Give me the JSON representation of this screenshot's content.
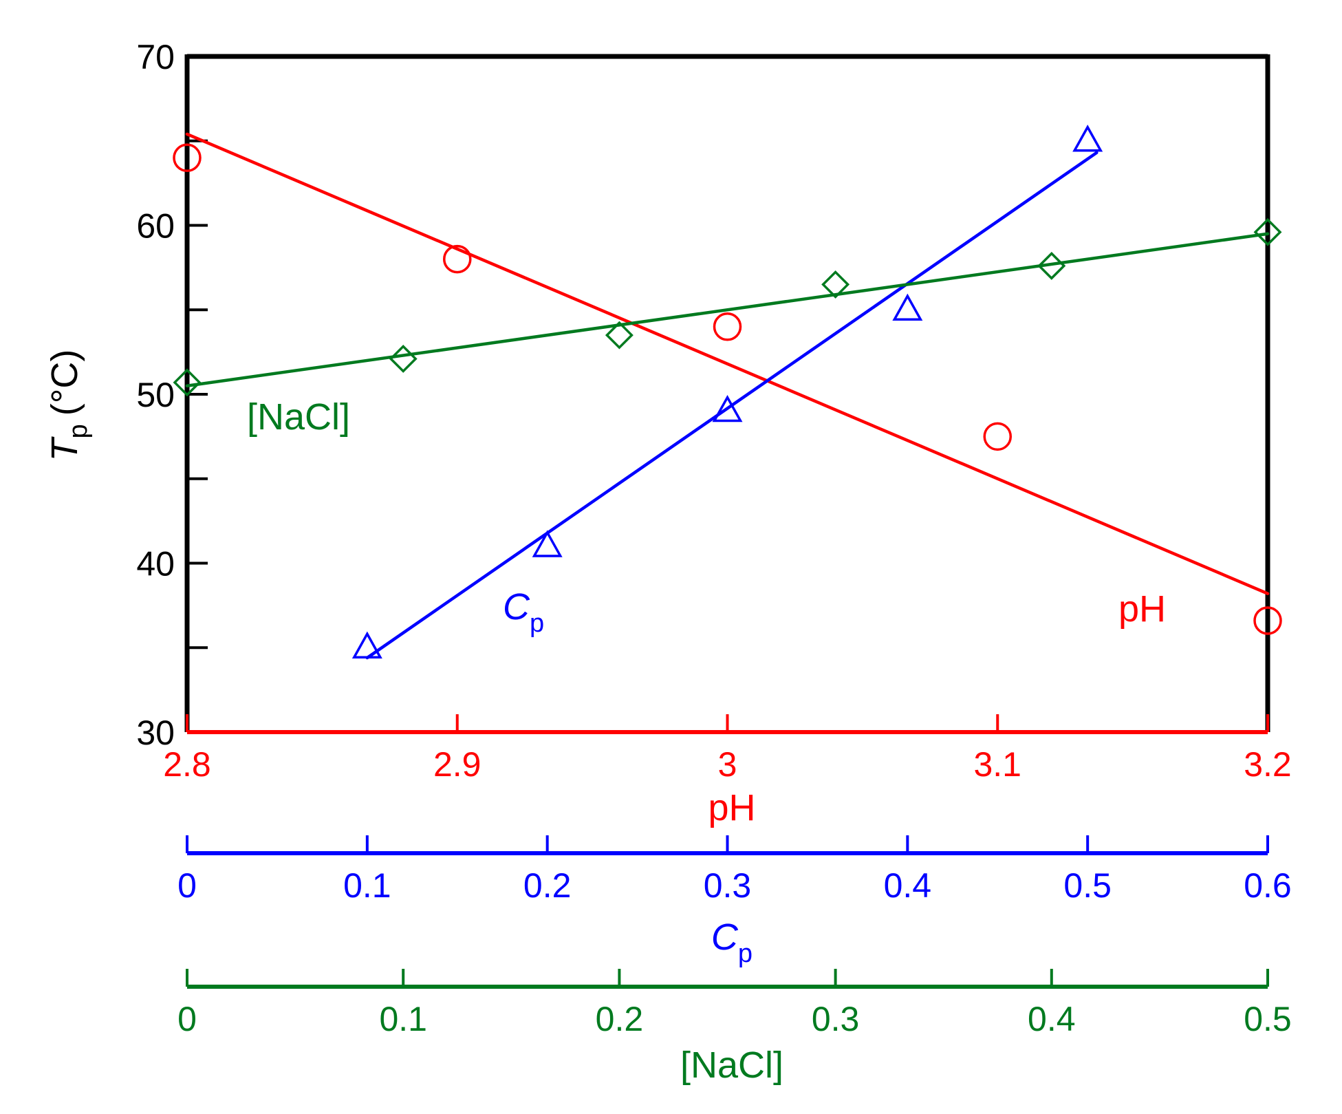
{
  "chart_data": {
    "type": "scatter",
    "title": "",
    "ylabel": {
      "symbol": "T",
      "subscript": "p",
      "unit": "(°C)"
    },
    "ylim": [
      30,
      70
    ],
    "yticks": [
      30,
      40,
      50,
      60,
      70
    ],
    "yminor": [
      35,
      45,
      55,
      65
    ],
    "grid": false,
    "colors": {
      "pH": "#ff0000",
      "Cp": "#0000ff",
      "NaCl": "#007a1f",
      "frame": "#000000"
    },
    "x_axes": [
      {
        "key": "pH",
        "label": "pH",
        "xlim": [
          2.8,
          3.2
        ],
        "ticks": [
          2.8,
          2.9,
          3.0,
          3.1,
          3.2
        ],
        "tick_labels": [
          "2.8",
          "2.9",
          "3",
          "3.1",
          "3.2"
        ]
      },
      {
        "key": "Cp",
        "label": {
          "symbol": "C",
          "subscript": "p"
        },
        "xlim": [
          0,
          0.6
        ],
        "ticks": [
          0,
          0.1,
          0.2,
          0.3,
          0.4,
          0.5,
          0.6
        ],
        "tick_labels": [
          "0",
          "0.1",
          "0.2",
          "0.3",
          "0.4",
          "0.5",
          "0.6"
        ]
      },
      {
        "key": "NaCl",
        "label": "[NaCl]",
        "xlim": [
          0,
          0.5
        ],
        "ticks": [
          0,
          0.1,
          0.2,
          0.3,
          0.4,
          0.5
        ],
        "tick_labels": [
          "0",
          "0.1",
          "0.2",
          "0.3",
          "0.4",
          "0.5"
        ]
      }
    ],
    "series": [
      {
        "name": "pH",
        "axis": "pH",
        "marker": "circle",
        "label": "pH",
        "x": [
          2.8,
          2.9,
          3.0,
          3.1,
          3.2
        ],
        "y": [
          64,
          58,
          54,
          47.5,
          36.6
        ],
        "fit": {
          "x": [
            2.8,
            3.2
          ],
          "y": [
            65.4,
            38.2
          ]
        }
      },
      {
        "name": "Cp",
        "axis": "Cp",
        "marker": "triangle",
        "label": {
          "symbol": "C",
          "subscript": "p"
        },
        "x": [
          0.1,
          0.2,
          0.3,
          0.4,
          0.5
        ],
        "y": [
          35,
          41,
          49,
          55,
          65
        ],
        "fit": {
          "x": [
            0.1,
            0.505
          ],
          "y": [
            34.4,
            64.3
          ]
        }
      },
      {
        "name": "NaCl",
        "axis": "NaCl",
        "marker": "diamond",
        "label": "[NaCl]",
        "x": [
          0,
          0.1,
          0.2,
          0.3,
          0.4,
          0.5
        ],
        "y": [
          50.7,
          52.1,
          53.5,
          56.5,
          57.6,
          59.6
        ],
        "fit": {
          "x": [
            0,
            0.5
          ],
          "y": [
            50.5,
            59.5
          ]
        }
      }
    ]
  }
}
